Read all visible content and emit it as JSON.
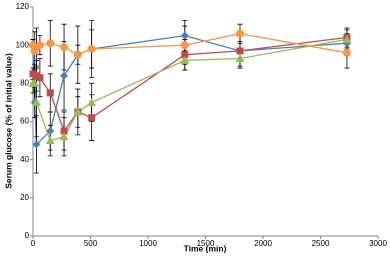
{
  "chart_data": {
    "type": "scatter",
    "xlabel": "Time (min)",
    "ylabel": "Serum glucose (% of initial value)",
    "xlim": [
      0,
      3000
    ],
    "xticks": [
      0,
      500,
      1000,
      1500,
      2000,
      2500,
      3000
    ],
    "ylim": [
      0,
      120
    ],
    "yticks": [
      0,
      20,
      40,
      60,
      80,
      100,
      120
    ],
    "grid": false,
    "series": [
      {
        "color": "#4a7ebb",
        "marker": "diamond",
        "x": [
          0,
          15,
          30,
          150,
          270,
          390,
          510,
          1320,
          1800,
          2730
        ],
        "values": [
          100,
          70,
          48,
          55,
          84,
          95,
          98,
          105,
          97,
          101
        ],
        "errors": [
          3,
          8,
          15,
          10,
          18,
          5,
          15,
          8,
          8,
          5
        ]
      },
      {
        "color": "#be4b48",
        "marker": "square",
        "x": [
          0,
          30,
          60,
          150,
          270,
          390,
          510,
          1320,
          1800,
          2730
        ],
        "values": [
          85,
          84,
          83,
          75,
          55,
          65,
          62,
          95,
          97,
          104
        ],
        "errors": [
          3,
          8,
          10,
          10,
          10,
          12,
          12,
          8,
          5,
          5
        ]
      },
      {
        "color": "#98b954",
        "marker": "triangle",
        "x": [
          0,
          15,
          30,
          150,
          270,
          390,
          510,
          1320,
          1800,
          2730
        ],
        "values": [
          80,
          80,
          70,
          50,
          52,
          65,
          70,
          92,
          93,
          103
        ],
        "errors": [
          5,
          10,
          18,
          8,
          10,
          8,
          10,
          5,
          5,
          5
        ]
      },
      {
        "color": "#f79646",
        "marker": "circle",
        "x": [
          0,
          15,
          30,
          60,
          150,
          270,
          390,
          510,
          1320,
          1800,
          2730
        ],
        "values": [
          100,
          97,
          99,
          100,
          101,
          99,
          95,
          98,
          100,
          106,
          96
        ],
        "errors": [
          3,
          10,
          10,
          5,
          12,
          12,
          15,
          10,
          10,
          5,
          8
        ]
      }
    ]
  }
}
